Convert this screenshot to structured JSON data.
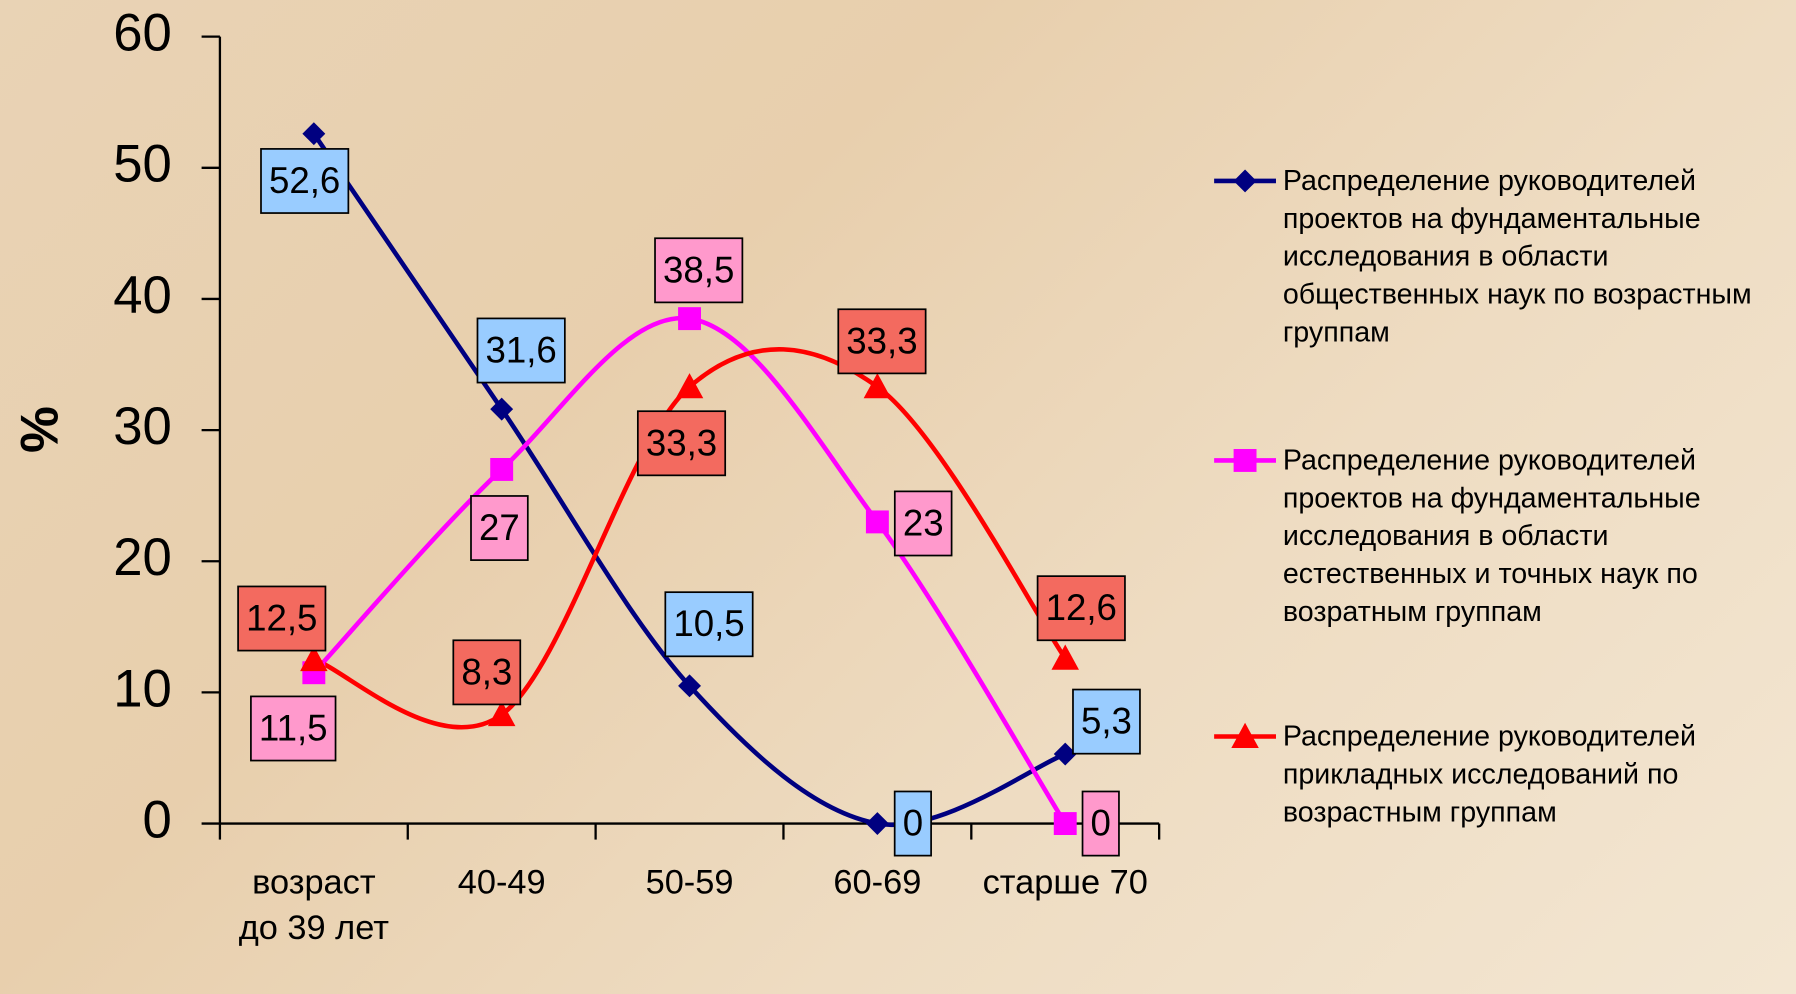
{
  "chart_data": {
    "type": "line",
    "ylabel": "%",
    "categories": [
      "возраст до 39 лет",
      "40-49",
      "50-59",
      "60-69",
      "старше 70"
    ],
    "ylim": [
      0,
      60
    ],
    "yticks": [
      0,
      10,
      20,
      30,
      40,
      50,
      60
    ],
    "series": [
      {
        "name": "Распределение руководителей проектов на фундаментальные исследования в области общественных наук по возрастным группам",
        "color": "#000080",
        "label_color": "#99ccff",
        "marker": "diamond",
        "values": [
          52.6,
          31.6,
          10.5,
          0,
          5.3
        ],
        "value_labels": [
          "52,6",
          "31,6",
          "10,5",
          "0",
          "5,3"
        ]
      },
      {
        "name": "Распределение руководителей проектов на фундаментальные исследования в области естественных и точных наук по возратным группам",
        "color": "#ff00ff",
        "label_color": "#ff99cc",
        "marker": "square",
        "values": [
          11.5,
          27,
          38.5,
          23,
          0
        ],
        "value_labels": [
          "11,5",
          "27",
          "38,5",
          "23",
          "0"
        ]
      },
      {
        "name": "Распределение руководителей прикладных исследований по возрастным группам",
        "color": "#ff0000",
        "label_color": "#f36a5f",
        "marker": "triangle",
        "values": [
          12.5,
          8.3,
          33.3,
          33.3,
          12.6
        ],
        "value_labels": [
          "12,5",
          "8,3",
          "33,3",
          "33,3",
          "12,6"
        ]
      }
    ]
  }
}
